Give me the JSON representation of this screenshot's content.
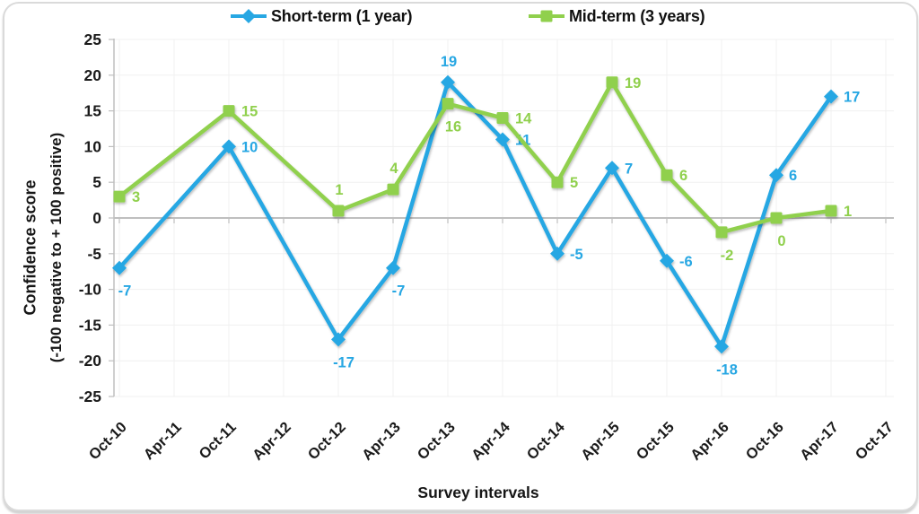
{
  "chart_data": {
    "type": "line",
    "categories": [
      "Oct-10",
      "Apr-11",
      "Oct-11",
      "Apr-12",
      "Oct-12",
      "Apr-13",
      "Oct-13",
      "Apr-14",
      "Oct-14",
      "Apr-15",
      "Oct-15",
      "Apr-16",
      "Oct-16",
      "Apr-17",
      "Oct-17"
    ],
    "series": [
      {
        "name": "Short-term (1 year)",
        "color": "#27A7E3",
        "marker": "diamond",
        "points": [
          {
            "category": "Oct-10",
            "value": -7,
            "label_pos": "below"
          },
          {
            "category": "Oct-11",
            "value": 10,
            "label_pos": "right"
          },
          {
            "category": "Oct-12",
            "value": -17,
            "label_pos": "below"
          },
          {
            "category": "Apr-13",
            "value": -7,
            "label_pos": "below"
          },
          {
            "category": "Oct-13",
            "value": 19,
            "label_pos": "above"
          },
          {
            "category": "Apr-14",
            "value": 11,
            "label_pos": "right"
          },
          {
            "category": "Oct-14",
            "value": -5,
            "label_pos": "right"
          },
          {
            "category": "Apr-15",
            "value": 7,
            "label_pos": "right"
          },
          {
            "category": "Oct-15",
            "value": -6,
            "label_pos": "right"
          },
          {
            "category": "Apr-16",
            "value": -18,
            "label_pos": "below"
          },
          {
            "category": "Oct-16",
            "value": 6,
            "label_pos": "right"
          },
          {
            "category": "Apr-17",
            "value": 17,
            "label_pos": "right"
          }
        ]
      },
      {
        "name": "Mid-term (3 years)",
        "color": "#90D04D",
        "marker": "square",
        "points": [
          {
            "category": "Oct-10",
            "value": 3,
            "label_pos": "right"
          },
          {
            "category": "Oct-11",
            "value": 15,
            "label_pos": "right"
          },
          {
            "category": "Oct-12",
            "value": 1,
            "label_pos": "above"
          },
          {
            "category": "Apr-13",
            "value": 4,
            "label_pos": "above"
          },
          {
            "category": "Oct-13",
            "value": 16,
            "label_pos": "below"
          },
          {
            "category": "Apr-14",
            "value": 14,
            "label_pos": "right"
          },
          {
            "category": "Oct-14",
            "value": 5,
            "label_pos": "right"
          },
          {
            "category": "Apr-15",
            "value": 19,
            "label_pos": "right"
          },
          {
            "category": "Oct-15",
            "value": 6,
            "label_pos": "right"
          },
          {
            "category": "Apr-16",
            "value": -2,
            "label_pos": "below"
          },
          {
            "category": "Oct-16",
            "value": 0,
            "label_pos": "below"
          },
          {
            "category": "Apr-17",
            "value": 1,
            "label_pos": "right"
          }
        ]
      }
    ],
    "ylim": [
      -25,
      25
    ],
    "ytick_step": 5,
    "ylabel_line1": "Confidence score",
    "ylabel_line2": "(-100 negative to + 100 positive)",
    "xlabel": "Survey intervals",
    "grid": true,
    "legend_position": "top",
    "axis_color": "#BFBFBF",
    "gridline_color": "#F0F0F0",
    "tick_label_color": "#1a1a1a"
  }
}
